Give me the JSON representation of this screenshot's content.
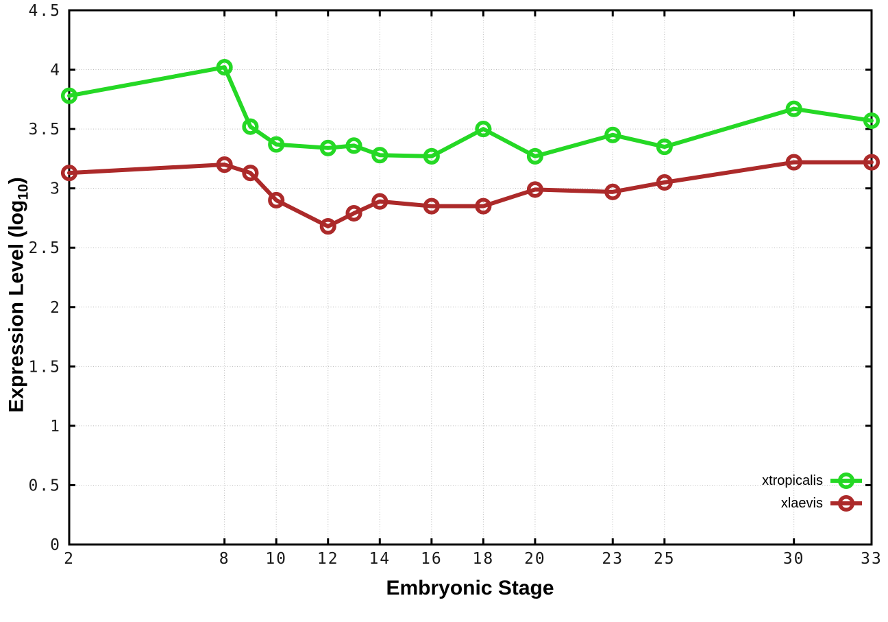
{
  "chart_data": {
    "type": "line",
    "title": "",
    "xlabel": "Embryonic Stage",
    "ylabel": {
      "main": "Expression Level (log",
      "sub": "10",
      "close": ")"
    },
    "x": [
      2,
      8,
      9,
      10,
      12,
      13,
      14,
      16,
      18,
      20,
      23,
      25,
      30,
      33
    ],
    "xlim": [
      2,
      33
    ],
    "ylim": [
      0,
      4.5
    ],
    "xtick_values": [
      2,
      8,
      10,
      12,
      14,
      16,
      18,
      20,
      23,
      25,
      30,
      33
    ],
    "xtick_labels": [
      "2",
      "8",
      "10",
      "12",
      "14",
      "16",
      "18",
      "20",
      "23",
      "25",
      "30",
      "33"
    ],
    "ytick_values": [
      0,
      0.5,
      1,
      1.5,
      2,
      2.5,
      3,
      3.5,
      4,
      4.5
    ],
    "ytick_labels": [
      "0",
      "0.5",
      "1",
      "1.5",
      "2",
      "2.5",
      "3",
      "3.5",
      "4",
      "4.5"
    ],
    "grid": true,
    "legend_position": "bottom-right",
    "series": [
      {
        "name": "xtropicalis",
        "color": "#25d825",
        "values": [
          3.78,
          4.02,
          3.52,
          3.37,
          3.34,
          3.36,
          3.28,
          3.27,
          3.5,
          3.27,
          3.45,
          3.35,
          3.67,
          3.57
        ]
      },
      {
        "name": "xlaevis",
        "color": "#ac2a2a",
        "values": [
          3.13,
          3.2,
          3.13,
          2.9,
          2.68,
          2.79,
          2.89,
          2.85,
          2.85,
          2.99,
          2.97,
          3.05,
          3.22,
          3.22
        ]
      }
    ]
  }
}
